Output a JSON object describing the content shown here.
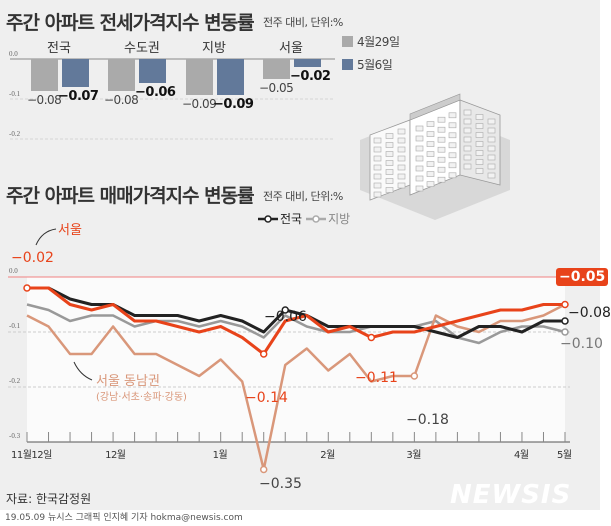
{
  "jeonse": {
    "title": "주간 아파트 전세가격지수 변동률",
    "subtitle": "전주 대비, 단위:%",
    "legend": [
      {
        "label": "4월29일",
        "color": "#aaaaaa"
      },
      {
        "label": "5월6일",
        "color": "#62799a"
      }
    ],
    "y_ticks": [
      "0.0",
      "-0.1",
      "-0.2"
    ],
    "categories": [
      "전국",
      "수도권",
      "지방",
      "서울"
    ],
    "series": [
      {
        "name": "4월29일",
        "values": [
          -0.08,
          -0.08,
          -0.09,
          -0.05
        ],
        "labels": [
          "−0.08",
          "−0.08",
          "−0.09",
          "−0.05"
        ]
      },
      {
        "name": "5월6일",
        "values": [
          -0.07,
          -0.06,
          -0.09,
          -0.02
        ],
        "labels": [
          "−0.07",
          "−0.06",
          "−0.09",
          "−0.02"
        ]
      }
    ]
  },
  "chart_data": {
    "type": "line",
    "title": "주간 아파트 매매가격지수 변동률",
    "subtitle": "전주 대비, 단위:%",
    "ylim": [
      -0.3,
      0.0
    ],
    "y_ticks": [
      "0.0",
      "-0.1",
      "-0.2",
      "-0.3"
    ],
    "x_labels": [
      "11월12일",
      "12월",
      "1월",
      "2월",
      "3월",
      "4월",
      "5월"
    ],
    "legend": [
      "전국",
      "지방"
    ],
    "series": [
      {
        "name": "전국",
        "color": "#222222",
        "values": [
          -0.02,
          -0.02,
          -0.04,
          -0.05,
          -0.05,
          -0.07,
          -0.07,
          -0.07,
          -0.08,
          -0.07,
          -0.08,
          -0.1,
          -0.06,
          -0.07,
          -0.09,
          -0.09,
          -0.09,
          -0.09,
          -0.09,
          -0.1,
          -0.11,
          -0.09,
          -0.09,
          -0.1,
          -0.08,
          -0.08
        ]
      },
      {
        "name": "지방",
        "color": "#999999",
        "values": [
          -0.05,
          -0.06,
          -0.08,
          -0.07,
          -0.07,
          -0.09,
          -0.08,
          -0.08,
          -0.09,
          -0.08,
          -0.09,
          -0.11,
          -0.07,
          -0.09,
          -0.1,
          -0.1,
          -0.09,
          -0.09,
          -0.09,
          -0.08,
          -0.11,
          -0.12,
          -0.1,
          -0.09,
          -0.09,
          -0.1
        ]
      },
      {
        "name": "서울",
        "color": "#e8431a",
        "values": [
          -0.02,
          -0.02,
          -0.05,
          -0.06,
          -0.05,
          -0.08,
          -0.08,
          -0.09,
          -0.1,
          -0.09,
          -0.11,
          -0.14,
          -0.08,
          -0.07,
          -0.1,
          -0.09,
          -0.11,
          -0.1,
          -0.1,
          -0.09,
          -0.08,
          -0.07,
          -0.06,
          -0.06,
          -0.05,
          -0.05
        ]
      },
      {
        "name": "서울 동남권",
        "color": "#d9977a",
        "values": [
          -0.07,
          -0.09,
          -0.14,
          -0.14,
          -0.09,
          -0.14,
          -0.14,
          -0.16,
          -0.18,
          -0.15,
          -0.19,
          -0.35,
          -0.16,
          -0.13,
          -0.17,
          -0.14,
          -0.19,
          -0.18,
          -0.18,
          -0.07,
          -0.09,
          -0.1,
          -0.08,
          -0.08,
          -0.07,
          -0.05
        ]
      }
    ],
    "annotations": {
      "seoul_name": "서울",
      "seoul_start": "−0.02",
      "seoul_end": "−0.05",
      "seoul_min": "−0.14",
      "seoul_mar": "−0.11",
      "national_feb": "−0.06",
      "national_end": "−0.08",
      "local_end": "−0.10",
      "gangnam_name": "서울 동남권",
      "gangnam_sub": "(강남·서초·송파·강동)",
      "gangnam_min": "−0.35",
      "gangnam_mar": "−0.18"
    }
  },
  "source": "자료: 한국감정원",
  "logo": "NEWSIS",
  "footer": "19.05.09 뉴시스 그래픽 인지혜 기자 hokma@newsis.com"
}
